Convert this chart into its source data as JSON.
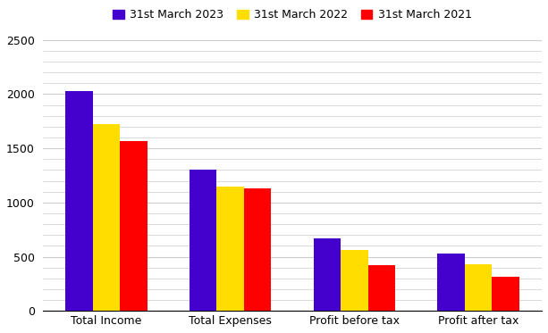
{
  "categories": [
    "Total Income",
    "Total Expenses",
    "Profit before tax",
    "Profit after tax"
  ],
  "series": [
    {
      "label": "31st March 2023",
      "color": "#4400cc",
      "values": [
        2030,
        1300,
        670,
        530
      ]
    },
    {
      "label": "31st March 2022",
      "color": "#ffdd00",
      "values": [
        1720,
        1150,
        560,
        430
      ]
    },
    {
      "label": "31st March 2021",
      "color": "#ff0000",
      "values": [
        1570,
        1130,
        420,
        315
      ]
    }
  ],
  "ylim": [
    0,
    2500
  ],
  "yticks_major": [
    0,
    500,
    1000,
    1500,
    2000,
    2500
  ],
  "ytick_minor_interval": 100,
  "background_color": "#ffffff",
  "grid_color": "#cccccc",
  "bar_width": 0.22,
  "legend_ncol": 3,
  "figsize": [
    6.13,
    3.73
  ],
  "dpi": 100
}
